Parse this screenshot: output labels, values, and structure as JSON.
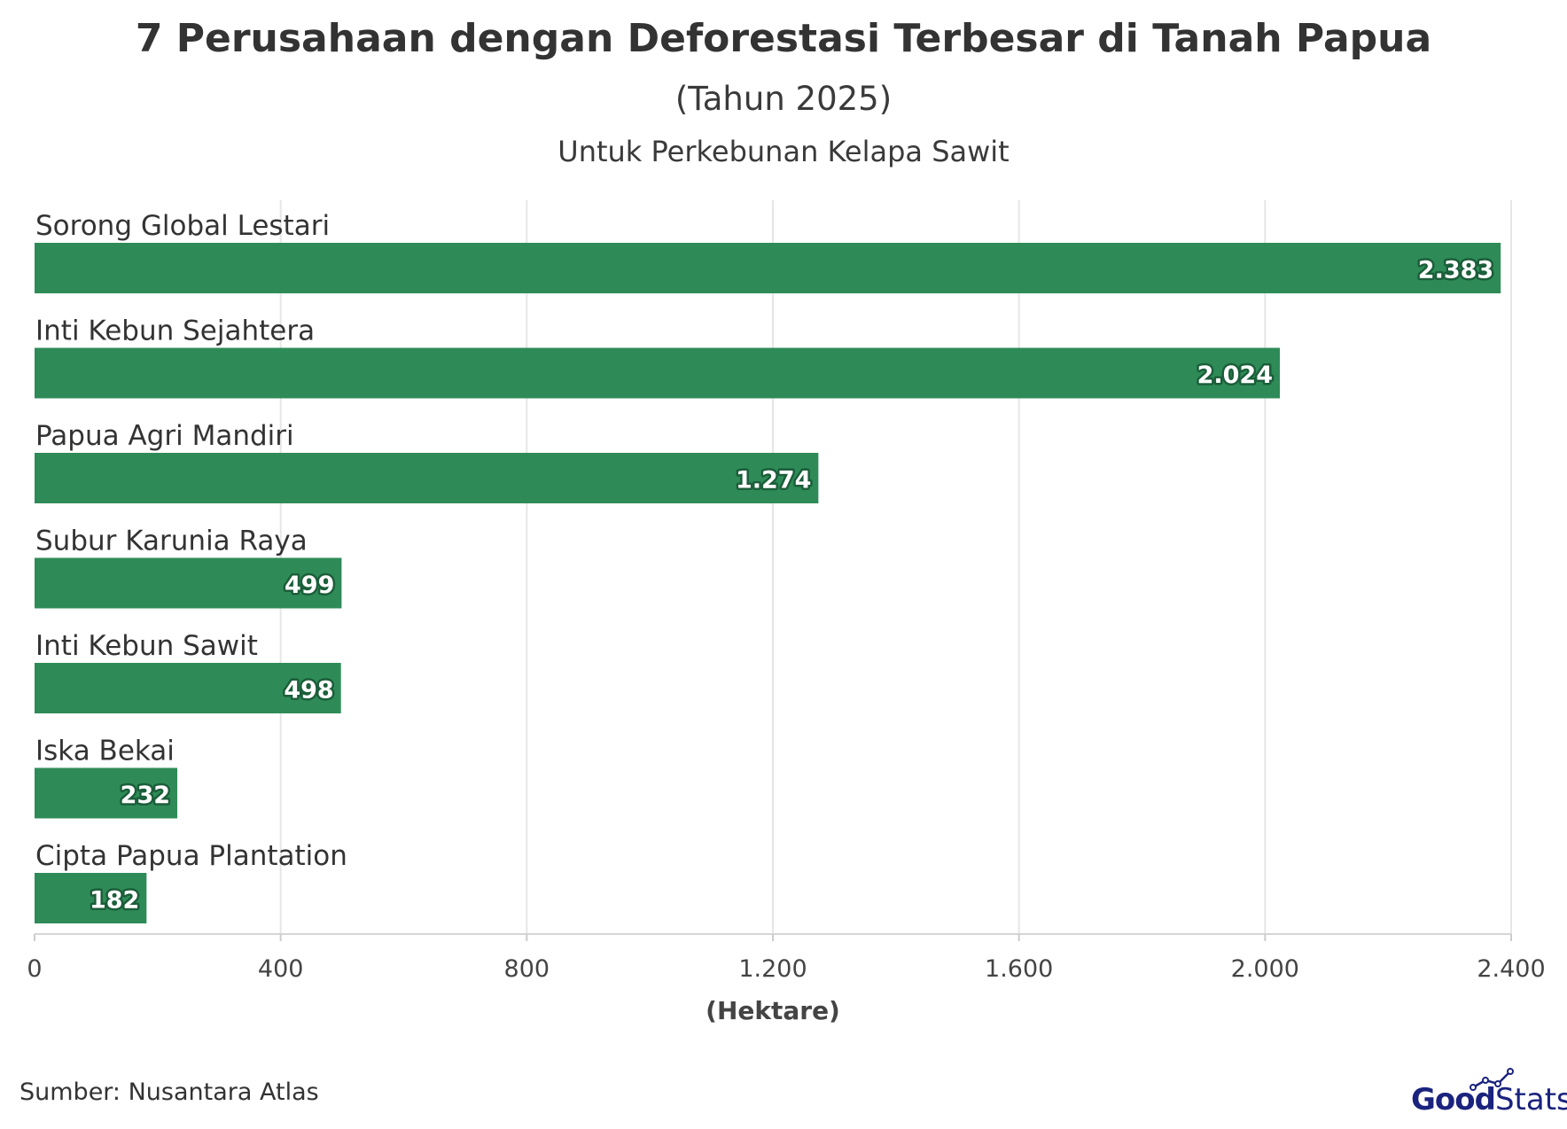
{
  "chart_data": {
    "type": "bar",
    "orientation": "horizontal",
    "title": "7 Perusahaan dengan Deforestasi Terbesar di Tanah Papua",
    "subtitle": "(Tahun 2025)",
    "subtitle2": "Untuk Perkebunan Kelapa Sawit",
    "xlabel": "(Hektare)",
    "ylabel": "",
    "categories": [
      "Sorong Global Lestari",
      "Inti Kebun Sejahtera",
      "Papua Agri Mandiri",
      "Subur Karunia Raya",
      "Inti Kebun Sawit",
      "Iska Bekai",
      "Cipta Papua Plantation"
    ],
    "values": [
      2383,
      2024,
      1274,
      499,
      498,
      232,
      182
    ],
    "value_labels": [
      "2.383",
      "2.024",
      "1.274",
      "499",
      "498",
      "232",
      "182"
    ],
    "xlim": [
      0,
      2400
    ],
    "ticks": [
      0,
      400,
      800,
      1200,
      1600,
      2000,
      2400
    ],
    "tick_labels": [
      "0",
      "400",
      "800",
      "1.200",
      "1.600",
      "2.000",
      "2.400"
    ],
    "grid": true,
    "bar_color": "#2e8b57",
    "label_outline_color": "#1b5e3a"
  },
  "source": "Sumber: Nusantara Atlas",
  "logo": {
    "good": "Good",
    "stats": "Stats"
  }
}
